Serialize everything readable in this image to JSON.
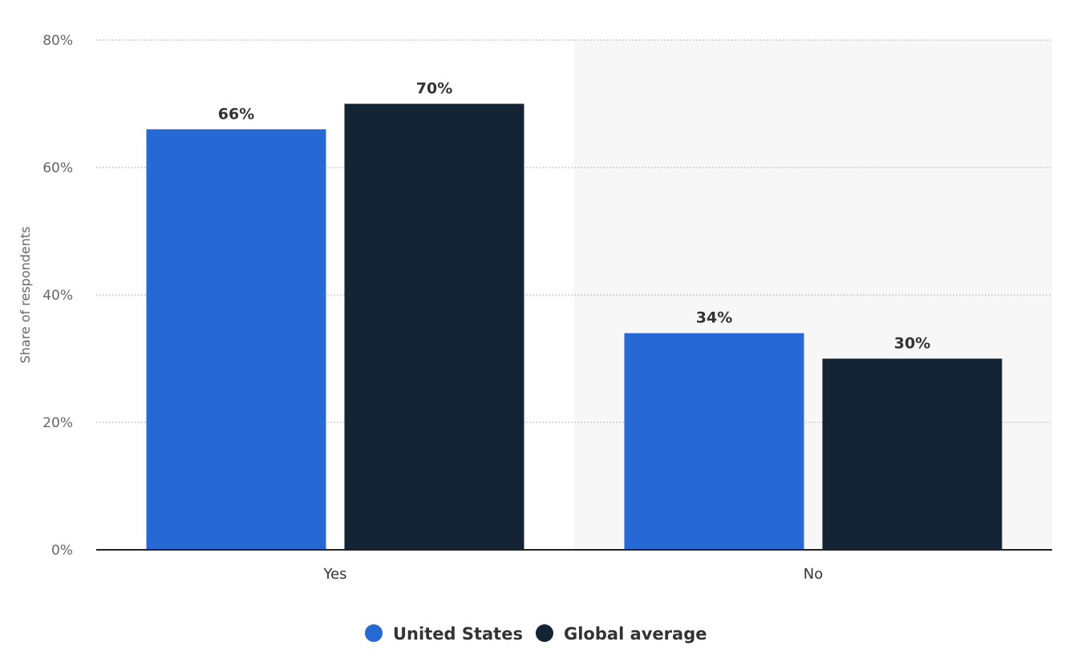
{
  "chart_data": {
    "type": "bar",
    "categories": [
      "Yes",
      "No"
    ],
    "series": [
      {
        "name": "United States",
        "values": [
          66,
          34
        ],
        "color": "#2668d4"
      },
      {
        "name": "Global average",
        "values": [
          70,
          30
        ],
        "color": "#142434"
      }
    ],
    "ylabel": "Share of respondents",
    "ylim": [
      0,
      80
    ],
    "y_ticks": [
      0,
      20,
      40,
      60,
      80
    ],
    "y_tick_labels": [
      "0%",
      "20%",
      "40%",
      "60%",
      "80%"
    ],
    "value_suffix": "%",
    "grid": true,
    "highlight_band_color": "#f7f7f7",
    "legend_position": "bottom-center"
  }
}
